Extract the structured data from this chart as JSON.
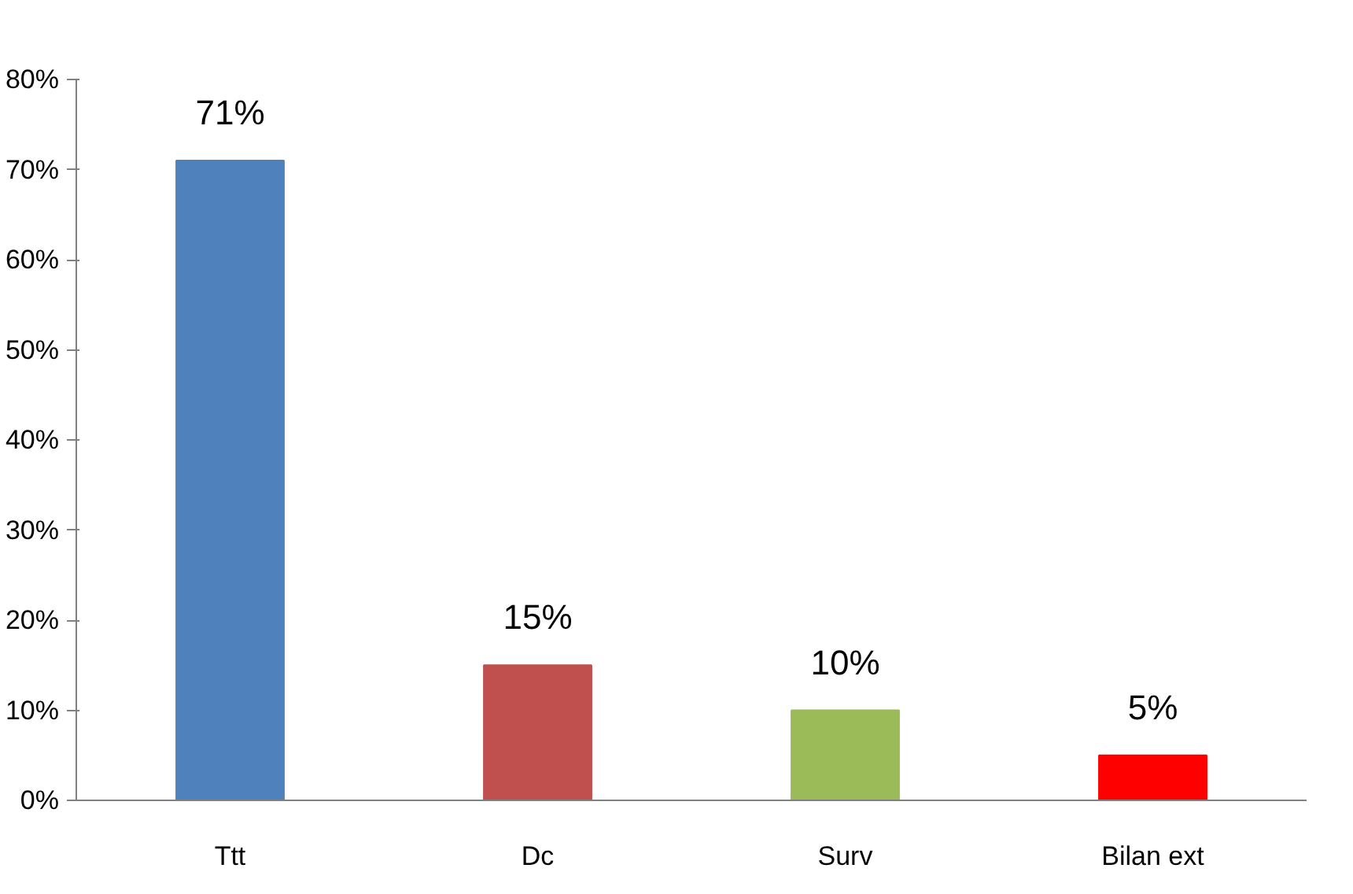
{
  "chart_data": {
    "type": "bar",
    "categories": [
      "Ttt",
      "Dc",
      "Surv",
      "Bilan ext"
    ],
    "values": [
      71,
      15,
      10,
      5
    ],
    "colors": [
      "#4f81bd",
      "#c0504d",
      "#9bbb59",
      "#ff0000"
    ],
    "value_labels": [
      "71%",
      "15%",
      "10%",
      "5%"
    ],
    "ylim": [
      0,
      80
    ],
    "yticks": [
      {
        "value": 0,
        "label": "0%"
      },
      {
        "value": 10,
        "label": "10%"
      },
      {
        "value": 20,
        "label": "20%"
      },
      {
        "value": 30,
        "label": "30%"
      },
      {
        "value": 40,
        "label": "40%"
      },
      {
        "value": 50,
        "label": "50%"
      },
      {
        "value": 60,
        "label": "60%"
      },
      {
        "value": 70,
        "label": "70%"
      },
      {
        "value": 80,
        "label": "80%"
      }
    ],
    "grid": false
  }
}
